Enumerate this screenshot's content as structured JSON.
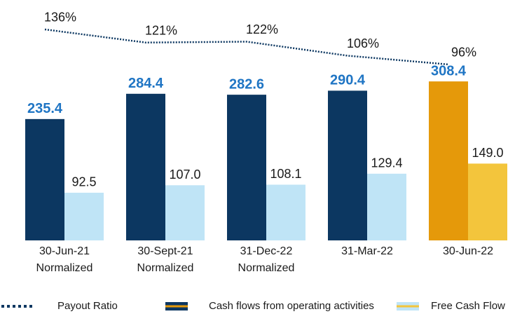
{
  "chart_data": {
    "type": "bar",
    "categories": [
      "30-Jun-21\nNormalized",
      "30-Sept-21\nNormalized",
      "31-Dec-22\nNormalized",
      "31-Mar-22",
      "30-Jun-22"
    ],
    "ylim": [
      0,
      450
    ],
    "y2lim": [
      -105,
      160
    ],
    "series": [
      {
        "name": "Cash flows from operating activities",
        "color": "#0c3761",
        "colors": [
          "#0c3761",
          "#0c3761",
          "#0c3761",
          "#0c3761",
          "#e5990a"
        ],
        "label_color": "#1f75c4",
        "label_bold": true,
        "values": [
          235.4,
          284.4,
          282.6,
          290.4,
          308.4
        ],
        "value_labels": [
          "235.4",
          "284.4",
          "282.6",
          "290.4",
          "308.4"
        ]
      },
      {
        "name": "Free Cash Flow",
        "color": "#bfe4f6",
        "colors": [
          "#bfe4f6",
          "#bfe4f6",
          "#bfe4f6",
          "#bfe4f6",
          "#f3c53c"
        ],
        "label_color": "#1a1a1a",
        "label_bold": false,
        "values": [
          92.5,
          107.0,
          108.1,
          129.4,
          149.0
        ],
        "value_labels": [
          "92.5",
          "107.0",
          "108.1",
          "129.4",
          "149.0"
        ]
      },
      {
        "name": "Payout Ratio",
        "type": "line",
        "axis": "y2",
        "color": "#0c3761",
        "dotted": true,
        "label_color": "#1a1a1a",
        "label_bold": false,
        "values": [
          136,
          121,
          122,
          106,
          96
        ],
        "value_labels": [
          "136%",
          "121%",
          "122%",
          "106%",
          "96%"
        ]
      }
    ],
    "legend": "bottom"
  }
}
